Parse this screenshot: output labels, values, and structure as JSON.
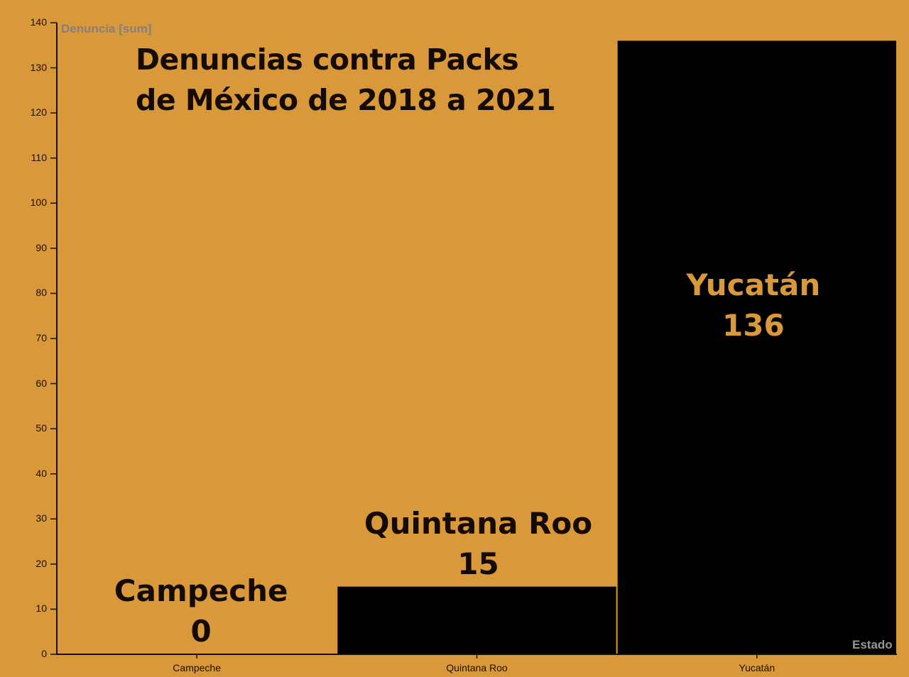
{
  "chart_data": {
    "type": "bar",
    "title": "Denuncias contra Packs de México de 2018 a 2021",
    "title_lines": [
      "Denuncias contra Packs",
      "de México de 2018 a 2021"
    ],
    "xlabel": "Estado",
    "ylabel": "Denuncia [sum]",
    "categories": [
      "Campeche",
      "Quintana Roo",
      "Yucatán"
    ],
    "values": [
      0,
      15,
      136
    ],
    "ylim": [
      0,
      140
    ],
    "yticks": [
      0,
      10,
      20,
      30,
      40,
      50,
      60,
      70,
      80,
      90,
      100,
      110,
      120,
      130,
      140
    ],
    "grid": false,
    "legend": null,
    "annotations": [
      {
        "category": "Campeche",
        "name": "Campeche",
        "value": "0"
      },
      {
        "category": "Quintana Roo",
        "name": "Quintana Roo",
        "value": "15"
      },
      {
        "category": "Yucatán",
        "name": "Yucatán",
        "value": "136"
      }
    ],
    "colors": {
      "background": "#D9983A",
      "bar": "#000000",
      "label_outside": "#140c04",
      "label_inside": "#D9983A",
      "axis": "#1a0f05",
      "axis_title": "#858080"
    }
  }
}
